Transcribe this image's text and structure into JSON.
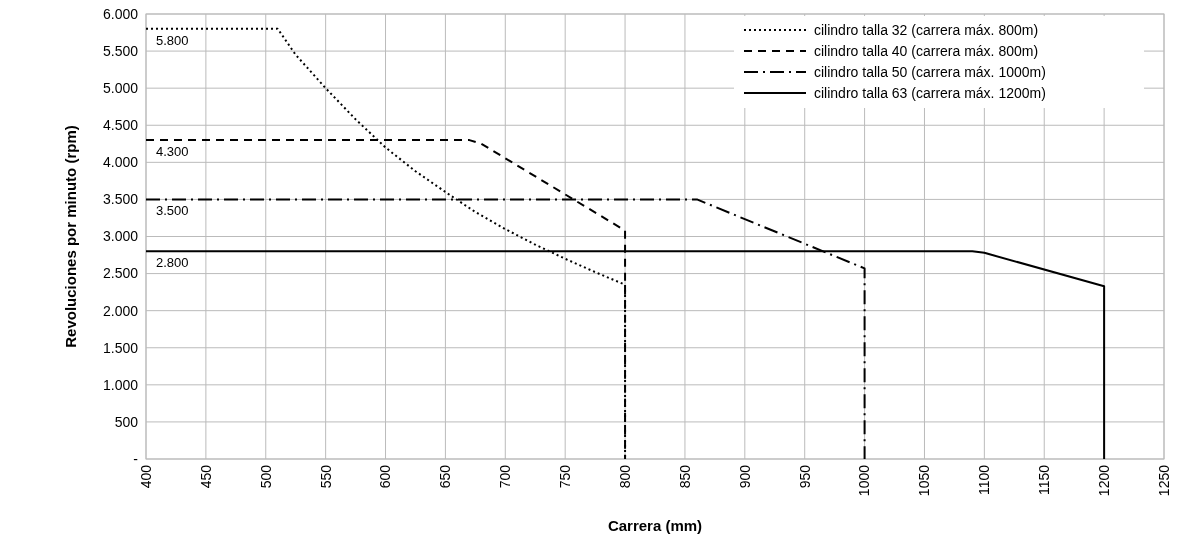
{
  "chart_data": {
    "type": "line",
    "xlabel": "Carrera (mm)",
    "ylabel": "Revoluciones por minuto (rpm)",
    "xlim": [
      400,
      1250
    ],
    "xticks": [
      400,
      450,
      500,
      550,
      600,
      650,
      700,
      750,
      800,
      850,
      900,
      950,
      1000,
      1050,
      1100,
      1150,
      1200,
      1250
    ],
    "ylim": [
      0,
      6000
    ],
    "yticks": [
      {
        "value": 0,
        "label": "-"
      },
      {
        "value": 500,
        "label": "500"
      },
      {
        "value": 1000,
        "label": "1.000"
      },
      {
        "value": 1500,
        "label": "1.500"
      },
      {
        "value": 2000,
        "label": "2.000"
      },
      {
        "value": 2500,
        "label": "2.500"
      },
      {
        "value": 3000,
        "label": "3.000"
      },
      {
        "value": 3500,
        "label": "3.500"
      },
      {
        "value": 4000,
        "label": "4.000"
      },
      {
        "value": 4500,
        "label": "4.500"
      },
      {
        "value": 5000,
        "label": "5.000"
      },
      {
        "value": 5500,
        "label": "5.500"
      },
      {
        "value": 6000,
        "label": "6.000"
      }
    ],
    "grid": true,
    "legend": "top right",
    "series": [
      {
        "name": "cilindro talla 32 (carrera máx. 800m)",
        "color": "#000000",
        "line_style": "dotted",
        "x": [
          400,
          510,
          525,
          550,
          575,
          600,
          625,
          650,
          675,
          700,
          725,
          750,
          775,
          800,
          800
        ],
        "values": [
          5800,
          5800,
          5450,
          5000,
          4580,
          4200,
          3880,
          3600,
          3330,
          3100,
          2890,
          2700,
          2520,
          2350,
          0
        ],
        "value_labels": [
          "5.800",
          null,
          null,
          null,
          null,
          null,
          null,
          null,
          null,
          null,
          null,
          null,
          null,
          null,
          null
        ]
      },
      {
        "name": "cilindro talla 40 (carrera máx. 800m)",
        "color": "#000000",
        "line_style": "dashed",
        "x": [
          400,
          670,
          680,
          800,
          800
        ],
        "values": [
          4300,
          4300,
          4250,
          3080,
          0
        ],
        "value_labels": [
          "4.300",
          null,
          null,
          null,
          null
        ]
      },
      {
        "name": "cilindro talla 50 (carrera máx. 1000m)",
        "color": "#000000",
        "line_style": "dashdot",
        "x": [
          400,
          860,
          1000,
          1000
        ],
        "values": [
          3500,
          3500,
          2570,
          0
        ],
        "value_labels": [
          "3.500",
          null,
          null,
          null
        ]
      },
      {
        "name": "cilindro talla 63 (carrera máx. 1200m)",
        "color": "#000000",
        "line_style": "solid",
        "x": [
          400,
          1090,
          1100,
          1200,
          1200
        ],
        "values": [
          2800,
          2800,
          2780,
          2330,
          0
        ],
        "value_labels": [
          "2.800",
          null,
          null,
          null,
          null
        ]
      }
    ]
  }
}
